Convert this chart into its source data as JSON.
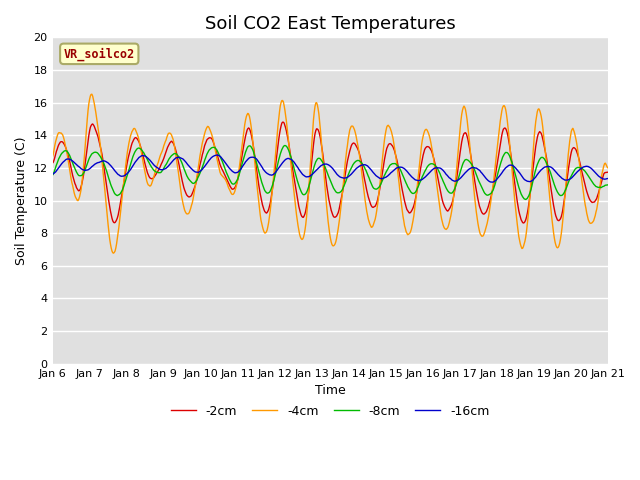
{
  "title": "Soil CO2 East Temperatures",
  "xlabel": "Time",
  "ylabel": "Soil Temperature (C)",
  "ylim": [
    0,
    20
  ],
  "yticks": [
    0,
    2,
    4,
    6,
    8,
    10,
    12,
    14,
    16,
    18,
    20
  ],
  "legend_label": "VR_soilco2",
  "legend_box_color": "#ffffcc",
  "legend_text_color": "#990000",
  "plot_bg_color": "#e0e0e0",
  "series_labels": [
    "-2cm",
    "-4cm",
    "-8cm",
    "-16cm"
  ],
  "series_colors": [
    "#dd0000",
    "#ff9900",
    "#00bb00",
    "#0000cc"
  ],
  "line_width": 1.0,
  "num_points": 720,
  "xtick_labels": [
    "Jan 6",
    "Jan 7",
    "Jan 8",
    "Jan 9",
    "Jan 10",
    "Jan 11",
    "Jan 12",
    "Jan 13",
    "Jan 14",
    "Jan 15",
    "Jan 16",
    "Jan 17",
    "Jan 18",
    "Jan 19",
    "Jan 20",
    "Jan 21"
  ],
  "title_fontsize": 13,
  "axis_label_fontsize": 9,
  "tick_fontsize": 8
}
